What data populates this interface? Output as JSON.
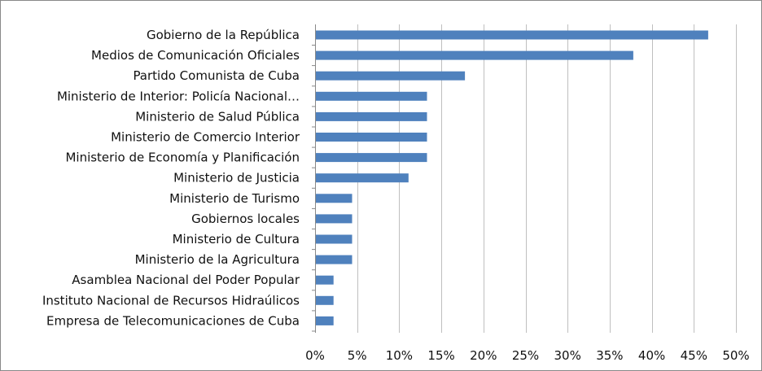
{
  "chart_data": {
    "type": "bar",
    "orientation": "horizontal",
    "categories": [
      "Gobierno de la República",
      "Medios de Comunicación Oficiales",
      "Partido Comunista de Cuba",
      "Ministerio de Interior: Policía Nacional…",
      "Ministerio de Salud Pública",
      "Ministerio de Comercio Interior",
      "Ministerio de Economía y Planificación",
      "Ministerio de Justicia",
      "Ministerio de Turismo",
      "Gobiernos locales",
      "Ministerio de Cultura",
      "Ministerio de la Agricultura",
      "Asamblea Nacional del Poder Popular",
      "Instituto Nacional de Recursos Hidraúlicos",
      "Empresa de Telecomunicaciones de Cuba"
    ],
    "values": [
      46.7,
      37.8,
      17.8,
      13.3,
      13.3,
      13.3,
      13.3,
      11.1,
      4.4,
      4.4,
      4.4,
      4.4,
      2.2,
      2.2,
      2.2
    ],
    "xlim": [
      0,
      50
    ],
    "x_ticks": [
      "0%",
      "5%",
      "10%",
      "15%",
      "20%",
      "25%",
      "30%",
      "35%",
      "40%",
      "45%",
      "50%"
    ],
    "grid": true,
    "legend": "none",
    "bar_color": "#4F81BD",
    "grid_color": "#BFBFBF"
  }
}
